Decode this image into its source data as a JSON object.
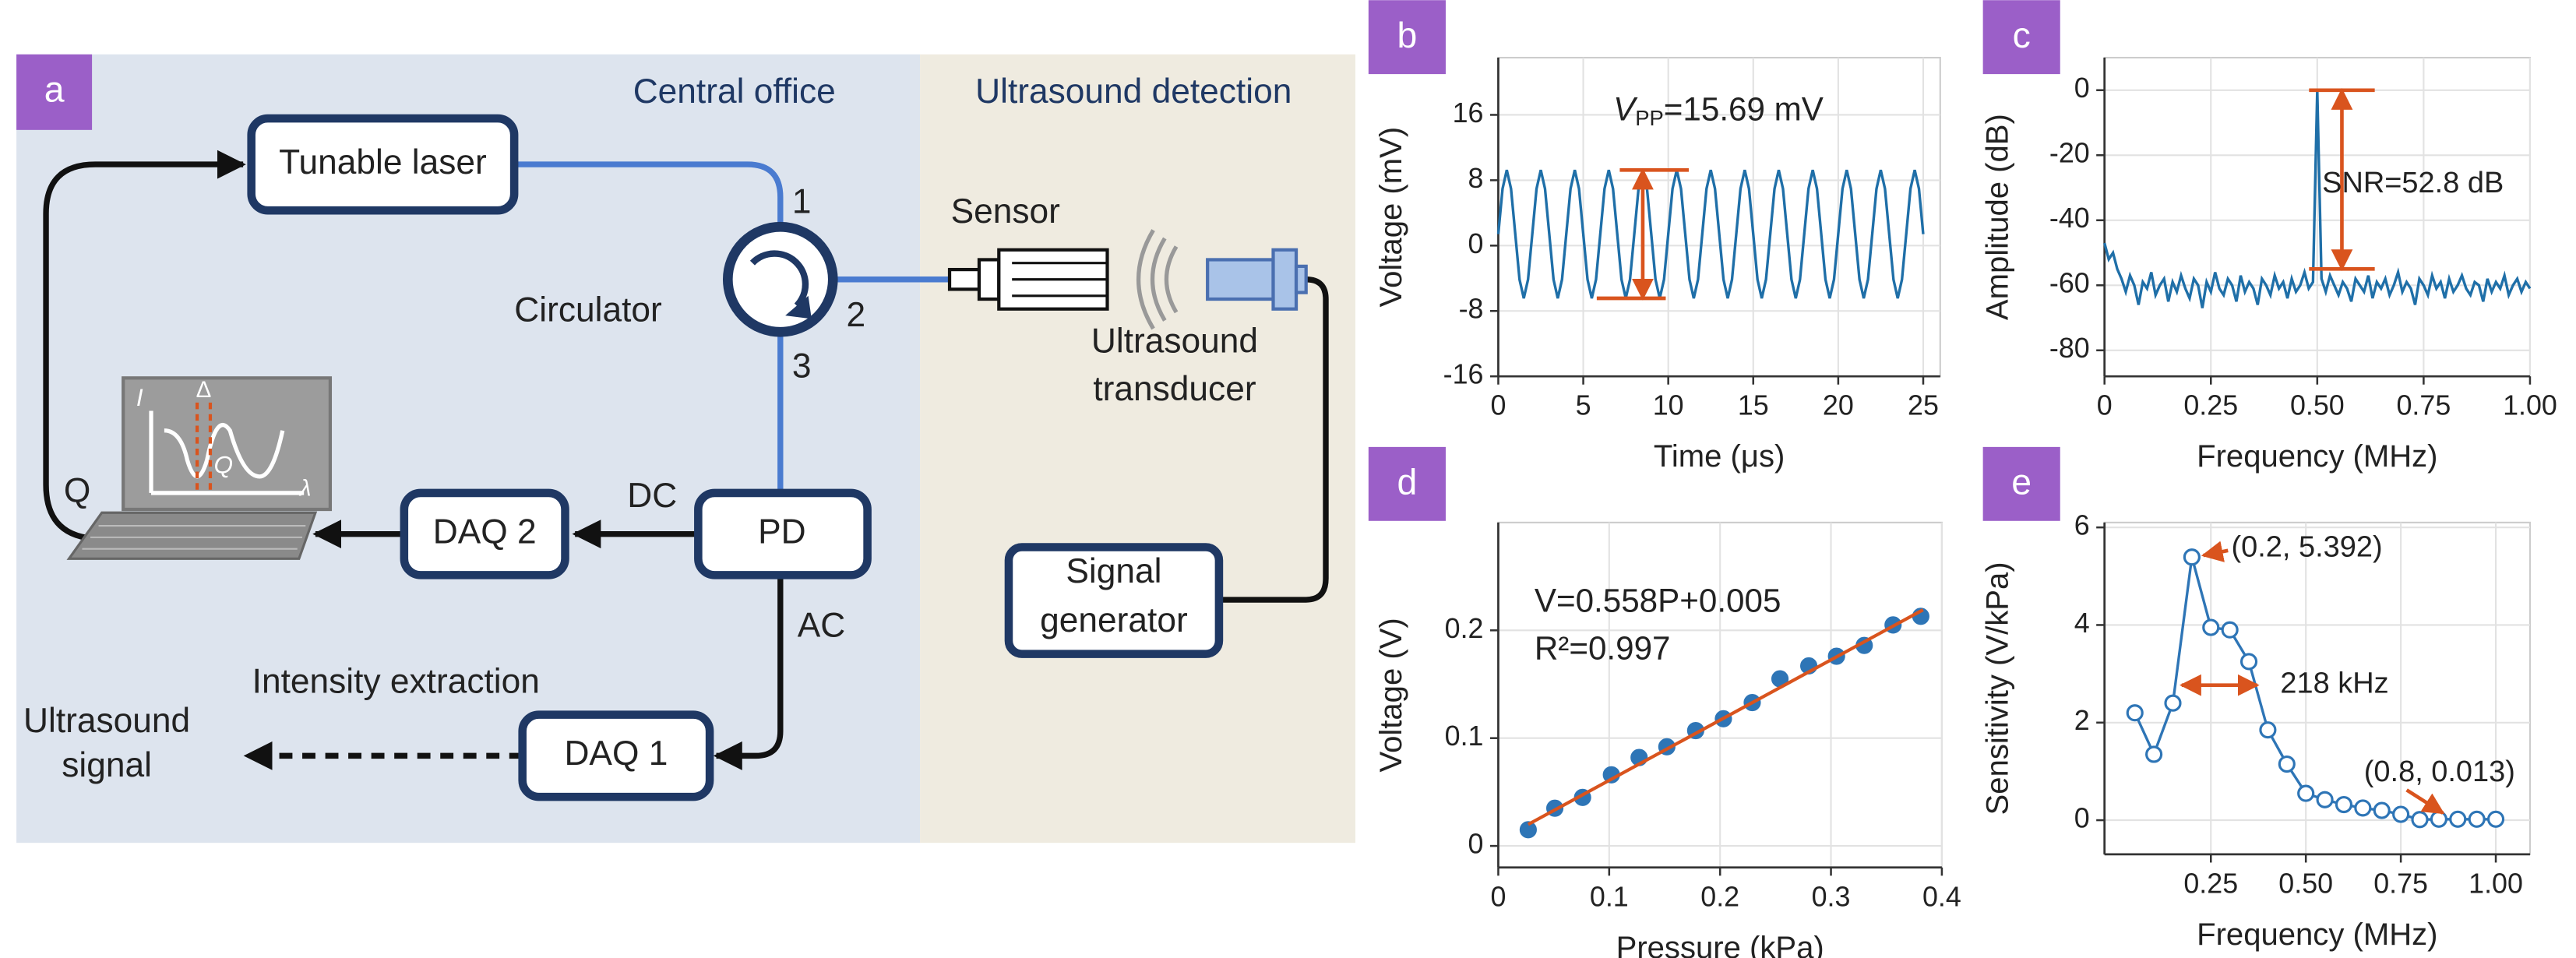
{
  "diagram": {
    "label": "a",
    "regions": [
      "Central office",
      "Ultrasound detection"
    ],
    "nodes": {
      "laser": "Tunable laser",
      "circulator": "Circulator",
      "ports": [
        "1",
        "2",
        "3"
      ],
      "sensor": "Sensor",
      "transducer": [
        "Ultrasound",
        "transducer"
      ],
      "generator": [
        "Signal",
        "generator"
      ],
      "pd": "PD",
      "daq2": "DAQ 2",
      "daq1": "DAQ 1"
    },
    "edges": {
      "dc": "DC",
      "ac": "AC",
      "q": "Q",
      "extraction": "Intensity extraction"
    },
    "output": [
      "Ultrasound",
      "signal"
    ],
    "screen": [
      "I",
      "Δ",
      "Q",
      "λ"
    ]
  },
  "chart_data": [
    {
      "label": "b",
      "type": "line",
      "x_label": "Time (μs)",
      "y_label": "Voltage (mV)",
      "xlim": [
        0,
        26
      ],
      "xticks": [
        0,
        5,
        10,
        15,
        20,
        25
      ],
      "ylim": [
        -16,
        23
      ],
      "yticks": [
        -16,
        -8,
        0,
        8,
        16
      ],
      "grid": true,
      "series": [
        {
          "mode": "line",
          "color": "#1f6fa8",
          "x": [
            0,
            0.25,
            0.5,
            0.75,
            1,
            1.25,
            1.5,
            1.75,
            2,
            2.25,
            2.5,
            2.75,
            3,
            3.25,
            3.5,
            3.75,
            4,
            4.25,
            4.5,
            4.75,
            5,
            5.25,
            5.5,
            5.75,
            6,
            6.25,
            6.5,
            6.75,
            7,
            7.25,
            7.5,
            7.75,
            8,
            8.25,
            8.5,
            8.75,
            9,
            9.25,
            9.5,
            9.75,
            10,
            10.25,
            10.5,
            10.75,
            11,
            11.25,
            11.5,
            11.75,
            12,
            12.25,
            12.5,
            12.75,
            13,
            13.25,
            13.5,
            13.75,
            14,
            14.25,
            14.5,
            14.75,
            15,
            15.25,
            15.5,
            15.75,
            16,
            16.25,
            16.5,
            16.75,
            17,
            17.25,
            17.5,
            17.75,
            18,
            18.25,
            18.5,
            18.75,
            19,
            19.25,
            19.5,
            19.75,
            20,
            20.25,
            20.5,
            20.75,
            21,
            21.25,
            21.5,
            21.75,
            22,
            22.25,
            22.5,
            22.75,
            23,
            23.25,
            23.5,
            23.75,
            24,
            24.25,
            24.5,
            24.75,
            25
          ],
          "values": [
            1.4,
            6.95,
            9.25,
            6.95,
            1.4,
            -4.15,
            -6.45,
            -4.15,
            1.4,
            6.95,
            9.25,
            6.95,
            1.4,
            -4.15,
            -6.45,
            -4.15,
            1.4,
            6.95,
            9.25,
            6.95,
            1.4,
            -4.15,
            -6.45,
            -4.15,
            1.4,
            6.95,
            9.25,
            6.95,
            1.4,
            -4.15,
            -6.45,
            -4.15,
            1.4,
            6.95,
            9.25,
            6.95,
            1.4,
            -4.15,
            -6.45,
            -4.15,
            1.4,
            6.95,
            9.25,
            6.95,
            1.4,
            -4.15,
            -6.45,
            -4.15,
            1.4,
            6.95,
            9.25,
            6.95,
            1.4,
            -4.15,
            -6.45,
            -4.15,
            1.4,
            6.95,
            9.25,
            6.95,
            1.4,
            -4.15,
            -6.45,
            -4.15,
            1.4,
            6.95,
            9.25,
            6.95,
            1.4,
            -4.15,
            -6.45,
            -4.15,
            1.4,
            6.95,
            9.25,
            6.95,
            1.4,
            -4.15,
            -6.45,
            -4.15,
            1.4,
            6.95,
            9.25,
            6.95,
            1.4,
            -4.15,
            -6.45,
            -4.15,
            1.4,
            6.95,
            9.25,
            6.95,
            1.4,
            -4.15,
            -6.45,
            -4.15,
            1.4,
            6.95,
            9.25,
            6.95,
            1.4
          ]
        }
      ],
      "annotations": [
        {
          "symbol": "V",
          "subscript": "PP",
          "text": "=15.69 mV"
        }
      ]
    },
    {
      "label": "c",
      "type": "line",
      "x_label": "Frequency (MHz)",
      "y_label": "Amplitude (dB)",
      "xlim": [
        0,
        1
      ],
      "xticks": [
        0,
        0.25,
        {
          "value": 0.5,
          "label": "0.50"
        },
        0.75,
        {
          "value": 1,
          "label": "1.00"
        }
      ],
      "ylim": [
        -88,
        10
      ],
      "yticks": [
        -80,
        -60,
        -40,
        -20,
        0
      ],
      "grid": true,
      "series": [
        {
          "mode": "line",
          "color": "#1f6fa8",
          "x": [
            0,
            0.01,
            0.02,
            0.03,
            0.04,
            0.05,
            0.06,
            0.07,
            0.08,
            0.09,
            0.1,
            0.11,
            0.12,
            0.13,
            0.14,
            0.15,
            0.16,
            0.17,
            0.18,
            0.19,
            0.2,
            0.21,
            0.22,
            0.23,
            0.24,
            0.25,
            0.26,
            0.27,
            0.28,
            0.29,
            0.3,
            0.31,
            0.32,
            0.33,
            0.34,
            0.35,
            0.36,
            0.37,
            0.38,
            0.39,
            0.4,
            0.41,
            0.42,
            0.43,
            0.44,
            0.45,
            0.46,
            0.47,
            0.48,
            0.49,
            0.5,
            0.51,
            0.52,
            0.53,
            0.54,
            0.55,
            0.56,
            0.57,
            0.58,
            0.59,
            0.6,
            0.61,
            0.62,
            0.63,
            0.64,
            0.65,
            0.66,
            0.67,
            0.68,
            0.69,
            0.7,
            0.71,
            0.72,
            0.73,
            0.74,
            0.75,
            0.76,
            0.77,
            0.78,
            0.79,
            0.8,
            0.81,
            0.82,
            0.83,
            0.84,
            0.85,
            0.86,
            0.87,
            0.88,
            0.89,
            0.9,
            0.91,
            0.92,
            0.93,
            0.94,
            0.95,
            0.96,
            0.97,
            0.98,
            0.99,
            1
          ],
          "values": [
            -47,
            -52,
            -50,
            -55,
            -58,
            -62,
            -57,
            -60,
            -66,
            -59,
            -61,
            -56,
            -63,
            -60,
            -58,
            -65,
            -59,
            -62,
            -57,
            -61,
            -64,
            -58,
            -60,
            -67,
            -59,
            -62,
            -56,
            -61,
            -63,
            -58,
            -60,
            -65,
            -57,
            -62,
            -59,
            -61,
            -66,
            -58,
            -60,
            -63,
            -57,
            -61,
            -59,
            -64,
            -58,
            -62,
            -60,
            -56,
            -61,
            -59,
            0,
            -58,
            -62,
            -57,
            -60,
            -63,
            -59,
            -61,
            -65,
            -58,
            -60,
            -62,
            -57,
            -64,
            -59,
            -61,
            -58,
            -63,
            -60,
            -56,
            -62,
            -59,
            -61,
            -66,
            -58,
            -60,
            -63,
            -57,
            -61,
            -59,
            -64,
            -58,
            -62,
            -60,
            -57,
            -61,
            -63,
            -59,
            -60,
            -65,
            -58,
            -62,
            -59,
            -61,
            -57,
            -63,
            -60,
            -58,
            -62,
            -59,
            -61
          ]
        }
      ],
      "annotations": [
        "SNR=52.8 dB"
      ]
    },
    {
      "label": "d",
      "type": "scatter",
      "x_label": "Pressure (kPa)",
      "y_label": "Voltage (V)",
      "xlim": [
        0,
        0.4
      ],
      "xticks": [
        0,
        0.1,
        0.2,
        0.3,
        0.4
      ],
      "ylim": [
        -0.02,
        0.3
      ],
      "yticks": [
        0,
        0.1,
        0.2
      ],
      "grid": true,
      "series": [
        {
          "mode": "markers",
          "color": "#2e75b6",
          "x": [
            0.027,
            0.051,
            0.076,
            0.102,
            0.127,
            0.152,
            0.178,
            0.203,
            0.229,
            0.254,
            0.28,
            0.305,
            0.33,
            0.356,
            0.381
          ],
          "values": [
            0.015,
            0.035,
            0.045,
            0.066,
            0.082,
            0.092,
            0.107,
            0.118,
            0.133,
            0.155,
            0.167,
            0.176,
            0.186,
            0.205,
            0.213
          ]
        },
        {
          "mode": "line",
          "color": "#d9541e",
          "x": [
            0.027,
            0.383
          ],
          "values": [
            0.02,
            0.219
          ]
        }
      ],
      "annotations": [
        "V=0.558P+0.005",
        "R²=0.997"
      ]
    },
    {
      "label": "e",
      "type": "line",
      "x_label": "Frequency (MHz)",
      "y_label": "Sensitivity (V/kPa)",
      "xlim": [
        -0.03,
        1.09
      ],
      "xticks": [
        0.25,
        {
          "value": 0.5,
          "label": "0.50"
        },
        0.75,
        {
          "value": 1,
          "label": "1.00"
        }
      ],
      "ylim": [
        -0.7,
        6.1
      ],
      "yticks": [
        0,
        2,
        4,
        6
      ],
      "grid": true,
      "series": [
        {
          "mode": "line+markers",
          "hollow": true,
          "color": "#2e75b6",
          "x": [
            0.05,
            0.1,
            0.15,
            0.2,
            0.25,
            0.3,
            0.35,
            0.4,
            0.45,
            0.5,
            0.55,
            0.6,
            0.65,
            0.7,
            0.75,
            0.8,
            0.85,
            0.9,
            0.95,
            1
          ],
          "values": [
            2.2,
            1.35,
            2.4,
            5.392,
            3.95,
            3.9,
            3.25,
            1.85,
            1.15,
            0.55,
            0.42,
            0.32,
            0.25,
            0.2,
            0.12,
            0.013,
            0.02,
            0.02,
            0.02,
            0.02
          ]
        }
      ],
      "annotations": [
        "(0.2, 5.392)",
        "218 kHz",
        "(0.8, 0.013)"
      ]
    }
  ]
}
